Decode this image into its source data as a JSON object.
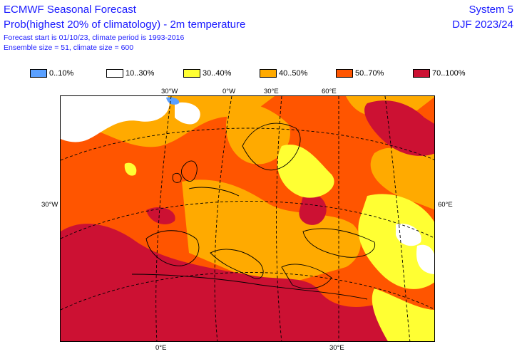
{
  "header": {
    "title": "ECMWF Seasonal Forecast",
    "subtitle": "Prob(highest 20% of climatology) - 2m temperature",
    "info_line1": "Forecast start is 01/10/23, climate period is 1993-2016",
    "info_line2": "Ensemble size = 51, climate size = 600",
    "system": "System 5",
    "season": "DJF 2023/24"
  },
  "legend": [
    {
      "label": "0..10%",
      "color": "#5aa0ff"
    },
    {
      "label": "10..30%",
      "color": "#ffffff"
    },
    {
      "label": "30..40%",
      "color": "#ffff33"
    },
    {
      "label": "40..50%",
      "color": "#ffaa00"
    },
    {
      "label": "50..70%",
      "color": "#ff5500"
    },
    {
      "label": "70..100%",
      "color": "#cc1133"
    }
  ],
  "grid_labels": {
    "top": [
      "30°W",
      "0°W",
      "30°E",
      "60°E"
    ],
    "left": "30°W",
    "right": "60°E",
    "bottom": [
      "0°E",
      "30°E"
    ]
  }
}
